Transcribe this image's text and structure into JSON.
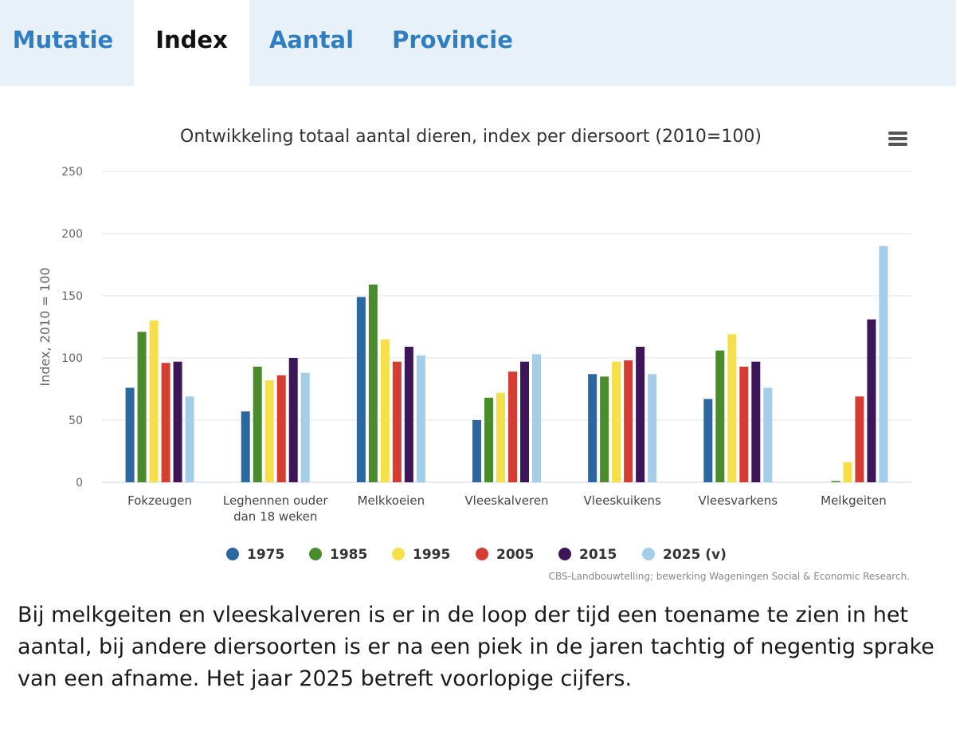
{
  "tabs": [
    {
      "label": "Mutatie",
      "active": false
    },
    {
      "label": "Index",
      "active": true
    },
    {
      "label": "Aantal",
      "active": false
    },
    {
      "label": "Provincie",
      "active": false
    }
  ],
  "chart_menu_icon": "hamburger-menu-icon",
  "chart_data": {
    "type": "bar",
    "title": "Ontwikkeling totaal aantal dieren, index per diersoort (2010=100)",
    "xlabel": "",
    "ylabel": "Index, 2010 = 100",
    "ylim": [
      0,
      250
    ],
    "yticks": [
      "0",
      "50",
      "100",
      "150",
      "200",
      "250"
    ],
    "grid": true,
    "legend_position": "bottom",
    "categories": [
      [
        "Fokzeugen"
      ],
      [
        "Leghennen ouder",
        "dan 18 weken"
      ],
      [
        "Melkkoeien"
      ],
      [
        "Vleeskalveren"
      ],
      [
        "Vleeskuikens"
      ],
      [
        "Vleesvarkens"
      ],
      [
        "Melkgeiten"
      ]
    ],
    "series": [
      {
        "name": "1975",
        "color": "#2b67a0",
        "values": [
          76,
          57,
          149,
          50,
          87,
          67,
          0
        ]
      },
      {
        "name": "1985",
        "color": "#4a8b2c",
        "values": [
          121,
          93,
          159,
          68,
          85,
          106,
          1
        ]
      },
      {
        "name": "1995",
        "color": "#f5e04a",
        "values": [
          130,
          82,
          115,
          72,
          97,
          119,
          16
        ]
      },
      {
        "name": "2005",
        "color": "#d43d2f",
        "values": [
          96,
          86,
          97,
          89,
          98,
          93,
          69
        ]
      },
      {
        "name": "2015",
        "color": "#3c1659",
        "values": [
          97,
          100,
          109,
          97,
          109,
          97,
          131
        ]
      },
      {
        "name": "2025 (v)",
        "color": "#a3cde9",
        "values": [
          69,
          88,
          102,
          103,
          87,
          76,
          190
        ]
      }
    ]
  },
  "source": "CBS-Landbouwtelling; bewerking Wageningen Social & Economic Research.",
  "paragraph": "Bij melkgeiten en vleeskalveren is er in de loop der tijd een toename te zien in het aantal, bij andere diersoorten is er na een piek in de jaren tachtig of negentig sprake van een afname. Het jaar 2025 betreft voorlopige cijfers."
}
